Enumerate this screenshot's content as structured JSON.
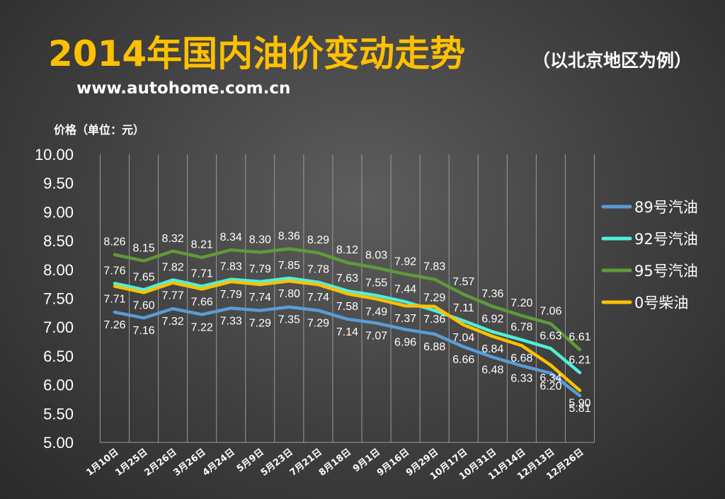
{
  "header": {
    "title": "2014年国内油价变动走势",
    "subtitle": "（以北京地区为例）",
    "website": "www.autohome.com.cn"
  },
  "colors": {
    "89": "#5b9bd5",
    "92": "#4ff0d8",
    "95": "#5e9a3a",
    "0": "#ffc000",
    "gridline": "#9a9a9a",
    "text": "#ffffff"
  },
  "chart_data": {
    "type": "line",
    "ylabel": "价格（单位：元）",
    "ylim": [
      5.0,
      10.0
    ],
    "yticks": [
      "5.00",
      "5.50",
      "6.00",
      "6.50",
      "7.00",
      "7.50",
      "8.00",
      "8.50",
      "9.00",
      "9.50",
      "10.00"
    ],
    "grid": "vertical",
    "legend_position": "right",
    "categories": [
      "1月10日",
      "1月25日",
      "2月26日",
      "3月26日",
      "4月24日",
      "5月9日",
      "5月23日",
      "7月21日",
      "8月18日",
      "9月1日",
      "9月16日",
      "9月29日",
      "10月17日",
      "10月31日",
      "11月14日",
      "12月13日",
      "12月26日"
    ],
    "series": [
      {
        "name": "89号汽油",
        "color_key": "89",
        "label_pos": "below",
        "values": [
          7.26,
          7.16,
          7.32,
          7.22,
          7.33,
          7.29,
          7.35,
          7.29,
          7.14,
          7.07,
          6.96,
          6.88,
          6.66,
          6.48,
          6.33,
          6.2,
          5.81
        ],
        "labels": [
          "7.26",
          "7.16",
          "7.32",
          "7.22",
          "7.33",
          "7.29",
          "7.35",
          "7.29",
          "7.14",
          "7.07",
          "6.96",
          "6.88",
          "6.66",
          "6.48",
          "6.33",
          "6.20",
          "5.81"
        ]
      },
      {
        "name": "92号汽油",
        "color_key": "92",
        "label_pos": "above",
        "values": [
          7.76,
          7.65,
          7.82,
          7.71,
          7.83,
          7.79,
          7.85,
          7.78,
          7.63,
          7.55,
          7.44,
          7.29,
          7.11,
          6.92,
          6.78,
          6.63,
          6.21
        ],
        "labels": [
          "7.76",
          "7.65",
          "7.82",
          "7.71",
          "7.83",
          "7.79",
          "7.85",
          "7.78",
          "7.63",
          "7.55",
          "7.44",
          "7.29",
          "7.11",
          "6.92",
          "6.78",
          "6.63",
          "6.21"
        ]
      },
      {
        "name": "95号汽油",
        "color_key": "95",
        "label_pos": "above",
        "values": [
          8.26,
          8.15,
          8.32,
          8.21,
          8.34,
          8.3,
          8.36,
          8.29,
          8.12,
          8.03,
          7.92,
          7.83,
          7.57,
          7.36,
          7.2,
          7.06,
          6.61
        ],
        "labels": [
          "8.26",
          "8.15",
          "8.32",
          "8.21",
          "8.34",
          "8.30",
          "8.36",
          "8.29",
          "8.12",
          "8.03",
          "7.92",
          "7.83",
          "7.57",
          "7.36",
          "7.20",
          "7.06",
          "6.61"
        ]
      },
      {
        "name": "0号柴油",
        "color_key": "0",
        "label_pos": "below",
        "values": [
          7.71,
          7.6,
          7.77,
          7.66,
          7.79,
          7.74,
          7.8,
          7.74,
          7.58,
          7.49,
          7.37,
          7.36,
          7.04,
          6.84,
          6.68,
          6.34,
          5.9
        ],
        "labels": [
          "7.71",
          "7.60",
          "7.77",
          "7.66",
          "7.79",
          "7.74",
          "7.80",
          "7.74",
          "7.58",
          "7.49",
          "7.37",
          "7.36",
          "7.04",
          "6.84",
          "6.68",
          "6.34",
          "5.90"
        ]
      }
    ]
  }
}
